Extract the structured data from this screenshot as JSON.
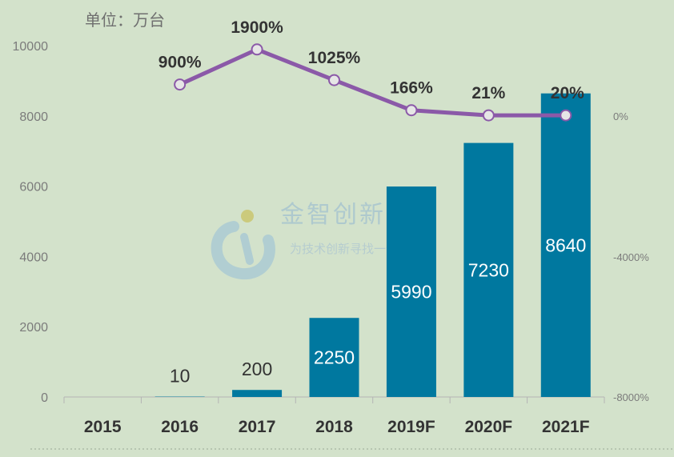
{
  "chart_data": {
    "type": "bar",
    "unit_label": "单位：万台",
    "categories": [
      "2015",
      "2016",
      "2017",
      "2018",
      "2019F",
      "2020F",
      "2021F"
    ],
    "series": [
      {
        "type": "bar",
        "axis": "left",
        "values": [
          0,
          10,
          200,
          2250,
          5990,
          7230,
          8640
        ],
        "data_labels": [
          "",
          "10",
          "200",
          "2250",
          "5990",
          "7230",
          "8640"
        ]
      },
      {
        "type": "line",
        "axis": "right",
        "values": [
          null,
          900,
          1900,
          1025,
          166,
          21,
          20
        ],
        "data_labels": [
          "",
          "900%",
          "1900%",
          "1025%",
          "166%",
          "21%",
          "20%"
        ]
      }
    ],
    "y_left": {
      "min": 0,
      "max": 10000,
      "ticks": [
        "0",
        "2000",
        "4000",
        "6000",
        "8000",
        "10000"
      ]
    },
    "y_right": {
      "ticks": [
        "-8000%",
        "-4000%",
        "0%"
      ]
    },
    "colors": {
      "bar": "#00789f",
      "line": "#8b59a8",
      "marker_fill": "#e6e6e6",
      "background": "#d3e2cb"
    },
    "grid": false
  },
  "watermark": {
    "title": "金智创新",
    "subtitle": "为技术创新寻找一个"
  }
}
